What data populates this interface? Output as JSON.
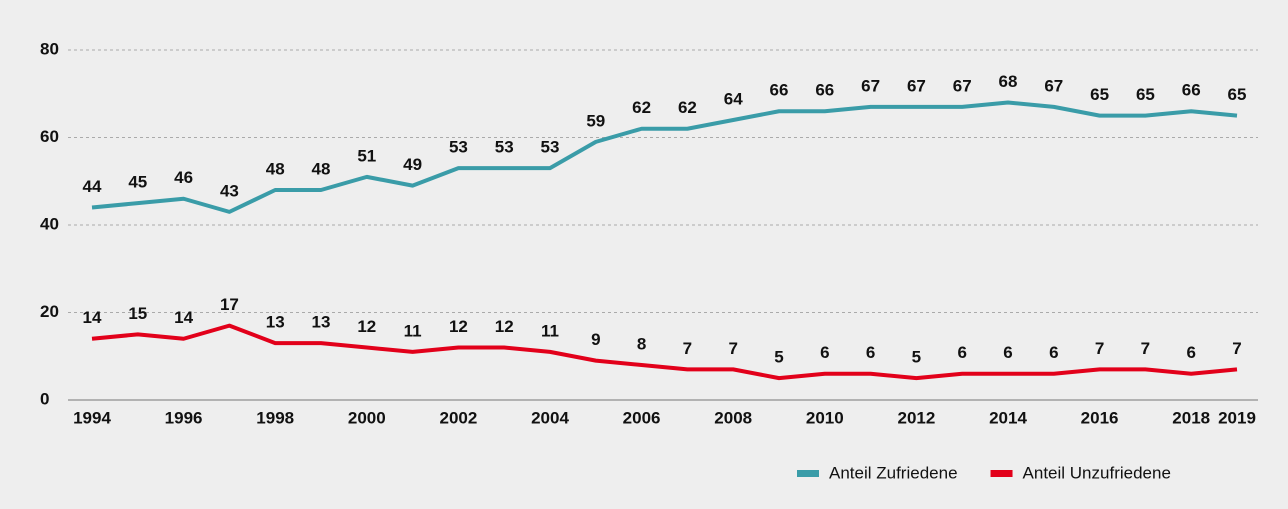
{
  "chart_data": {
    "type": "line",
    "x": [
      1994,
      1995,
      1996,
      1997,
      1998,
      1999,
      2000,
      2001,
      2002,
      2003,
      2004,
      2005,
      2006,
      2007,
      2008,
      2009,
      2010,
      2011,
      2012,
      2013,
      2014,
      2015,
      2016,
      2017,
      2018,
      2019
    ],
    "series": [
      {
        "name": "Anteil Zufriedene",
        "color": "#3a9ca8",
        "values": [
          44,
          45,
          46,
          43,
          48,
          48,
          51,
          49,
          53,
          53,
          53,
          59,
          62,
          62,
          64,
          66,
          66,
          67,
          67,
          67,
          68,
          67,
          65,
          65,
          66,
          65
        ]
      },
      {
        "name": "Anteil Unzufriedene",
        "color": "#e2001a",
        "values": [
          14,
          15,
          14,
          17,
          13,
          13,
          12,
          11,
          12,
          12,
          11,
          9,
          8,
          7,
          7,
          5,
          6,
          6,
          5,
          6,
          6,
          6,
          7,
          7,
          6,
          7
        ]
      }
    ],
    "xlim": [
      1994,
      2019
    ],
    "xticks": [
      1994,
      1996,
      1998,
      2000,
      2002,
      2004,
      2006,
      2008,
      2010,
      2012,
      2014,
      2016,
      2018,
      2019
    ],
    "ylim": [
      0,
      80
    ],
    "yticks": [
      0,
      20,
      40,
      60,
      80
    ],
    "grid": true,
    "legend": "bottom-right"
  }
}
